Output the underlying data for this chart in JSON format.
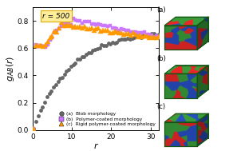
{
  "title_annotation": "r = 500",
  "xlabel": "r",
  "ylabel": "$g_{AB}(r)$",
  "xlim": [
    0,
    32
  ],
  "ylim": [
    0,
    0.9
  ],
  "xticks": [
    0,
    10,
    20,
    30
  ],
  "yticks": [
    0.0,
    0.2,
    0.4,
    0.6,
    0.8
  ],
  "legend_labels": [
    "(a)  Blob morphology",
    "(b)  Polymer-coated morphology",
    "(c)  Rigid polymer-coated morphology"
  ],
  "series_a_color": "#666666",
  "series_b_color": "#cc77ff",
  "series_c_color": "#ff9900",
  "annotation_box_color": "#ffee99",
  "annotation_border_color": "#ddaa00",
  "cube_red": "#cc2222",
  "cube_green": "#338833",
  "cube_blue": "#2244aa",
  "cube_edge": "#115511"
}
